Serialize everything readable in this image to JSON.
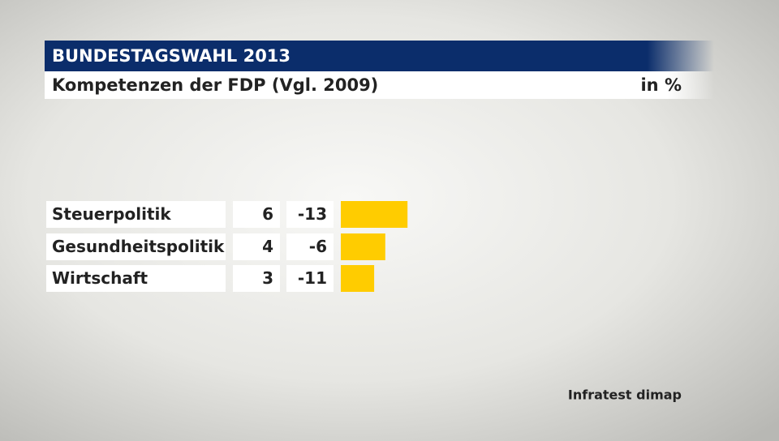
{
  "chart_data": {
    "type": "bar",
    "title": "BUNDESTAGSWAHL 2013",
    "subtitle": "Kompetenzen der FDP (Vgl. 2009)",
    "unit": "in %",
    "categories": [
      "Steuerpolitik",
      "Gesundheitspolitik",
      "Wirtschaft"
    ],
    "values": [
      6,
      4,
      3
    ],
    "changes": [
      -13,
      -6,
      -11
    ],
    "color": "#ffcc00",
    "source": "Infratest dimap"
  }
}
